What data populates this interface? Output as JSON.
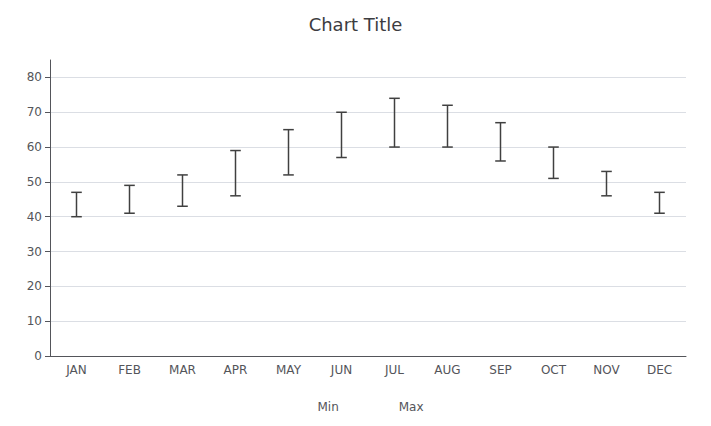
{
  "chart_data": {
    "type": "range",
    "title": "Chart Title",
    "categories": [
      "JAN",
      "FEB",
      "MAR",
      "APR",
      "MAY",
      "JUN",
      "JUL",
      "AUG",
      "SEP",
      "OCT",
      "NOV",
      "DEC"
    ],
    "series": [
      {
        "name": "Min",
        "values": [
          40,
          41,
          43,
          46,
          52,
          57,
          60,
          60,
          56,
          51,
          46,
          41
        ]
      },
      {
        "name": "Max",
        "values": [
          47,
          49,
          52,
          59,
          65,
          70,
          74,
          72,
          67,
          60,
          53,
          47
        ]
      }
    ],
    "color": "#404040",
    "ylim": [
      0,
      85
    ],
    "yticks": [
      0,
      10,
      20,
      30,
      40,
      50,
      60,
      70,
      80
    ],
    "grid": true,
    "legend": "bottom"
  }
}
